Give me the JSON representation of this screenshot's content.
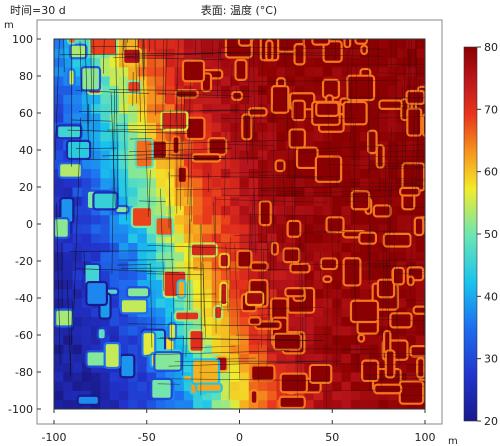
{
  "chart_data": {
    "type": "heatmap",
    "time_label": "时间=30 d",
    "title": "表面: 温度 (°C)",
    "x_unit": "m",
    "y_unit": "m",
    "xlim": [
      -100,
      100
    ],
    "ylim": [
      -100,
      100
    ],
    "x_ticks": [
      -100,
      -50,
      0,
      50,
      100
    ],
    "y_ticks": [
      -100,
      -80,
      -60,
      -40,
      -20,
      0,
      20,
      40,
      60,
      80,
      100
    ],
    "colorbar": {
      "min": 20,
      "max": 80,
      "ticks": [
        20,
        30,
        40,
        50,
        60,
        70,
        80
      ],
      "colormap": "rainbow",
      "colors": [
        "#1a1a8c",
        "#2233cc",
        "#1e6ef0",
        "#19c3ee",
        "#6fe6b0",
        "#f2ec2a",
        "#f7941d",
        "#e8341c",
        "#b8141b",
        "#8b0000"
      ]
    },
    "grid": false
  }
}
